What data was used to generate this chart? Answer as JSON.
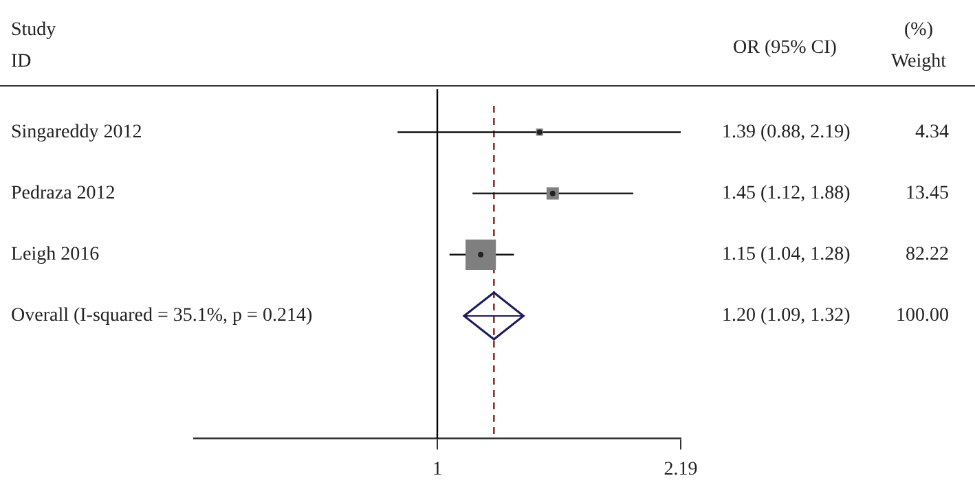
{
  "chart_data": {
    "type": "scatter",
    "orientation": "horizontal",
    "ylabel": "Study ID",
    "categories": [
      "Singareddy 2012",
      "Pedraza 2012",
      "Leigh 2016",
      "Overall (I-squared = 35.1%, p = 0.214)"
    ],
    "series": [
      {
        "marker": "square",
        "color": "#7f7f7f",
        "values": [
          1.39,
          1.45,
          1.15,
          null
        ],
        "errors": [
          [
            0.88,
            2.19
          ],
          [
            1.12,
            1.88
          ],
          [
            1.04,
            1.28
          ],
          null
        ],
        "sizes": [
          0.0528,
          0.1636,
          1,
          null
        ]
      },
      {
        "marker": "diamond",
        "color": "#1c1c5c",
        "values": [
          null,
          null,
          null,
          1.2
        ],
        "errors": [
          null,
          null,
          null,
          [
            1.09,
            1.32
          ]
        ]
      }
    ],
    "annotations": [
      "OR (95% CI)",
      "(%) Weight",
      "1.39 (0.88, 2.19)",
      "4.34",
      "1.45 (1.12, 1.88)",
      "13.45",
      "1.15 (1.04, 1.28)",
      "82.22",
      "1.20 (1.09, 1.32)",
      "100.00"
    ],
    "log": "x",
    "xlim": [
      0.4566,
      2.19
    ],
    "xticks": [
      1,
      2.19
    ],
    "ref_lines": [
      {
        "axis": "x",
        "value": 1,
        "color": "#000000",
        "line_style": "solid"
      },
      {
        "axis": "x",
        "value": 1.2,
        "color": "#8b1a1a",
        "line_style": "dashed"
      }
    ],
    "grid": false,
    "legend": false
  }
}
